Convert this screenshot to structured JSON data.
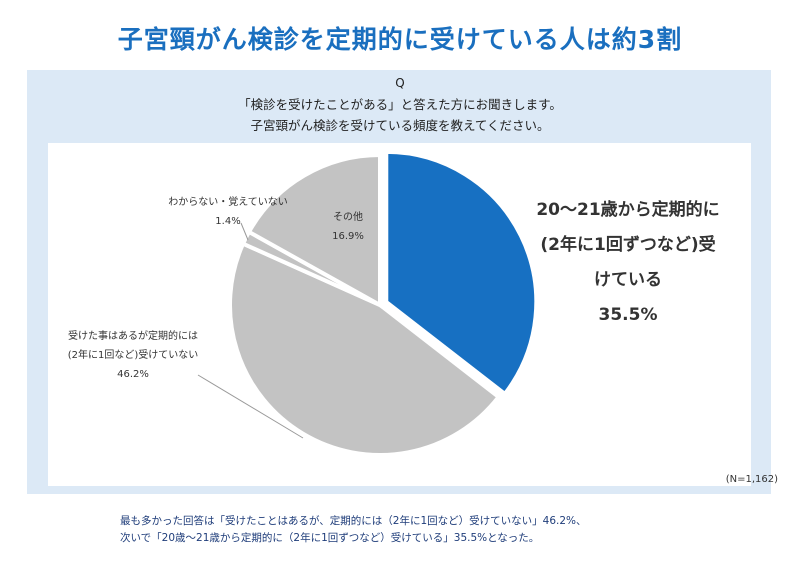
{
  "title": "子宮頸がん検診を定期的に受けている人は約3割",
  "question": {
    "mark": "Q",
    "line1": "「検診を受けたことがある」と答えた方にお聞きします。",
    "line2": "子宮頸がん検診を受けている頻度を教えてください。"
  },
  "n_label": "(N=1,162)",
  "footnote": {
    "line1": "最も多かった回答は「受けたことはあるが、定期的には（2年に1回など）受けていない」46.2%、",
    "line2": "次いで「20歳〜21歳から定期的に（2年に1回ずつなど）受けている」35.5%となった。"
  },
  "colors": {
    "accent": "#1a6fbf",
    "primary_slice": "#1770c2",
    "other_slices": "#c3c3c3",
    "panel": "#dce9f6"
  },
  "chart_data": {
    "type": "pie",
    "slices": [
      {
        "label_lines": [
          "20〜21歳から定期的に",
          "(2年に1回ずつなど)受",
          "けている"
        ],
        "value_text": "35.5%",
        "value": 35.5,
        "color": "#1770c2"
      },
      {
        "label_lines": [
          "受けた事はあるが定期的には",
          "(2年に1回など)受けていない"
        ],
        "value_text": "46.2%",
        "value": 46.2,
        "color": "#c3c3c3"
      },
      {
        "label_lines": [
          "わからない・覚えていない"
        ],
        "value_text": "1.4%",
        "value": 1.4,
        "color": "#c3c3c3"
      },
      {
        "label_lines": [
          "その他"
        ],
        "value_text": "16.9%",
        "value": 16.9,
        "color": "#c3c3c3"
      }
    ]
  }
}
